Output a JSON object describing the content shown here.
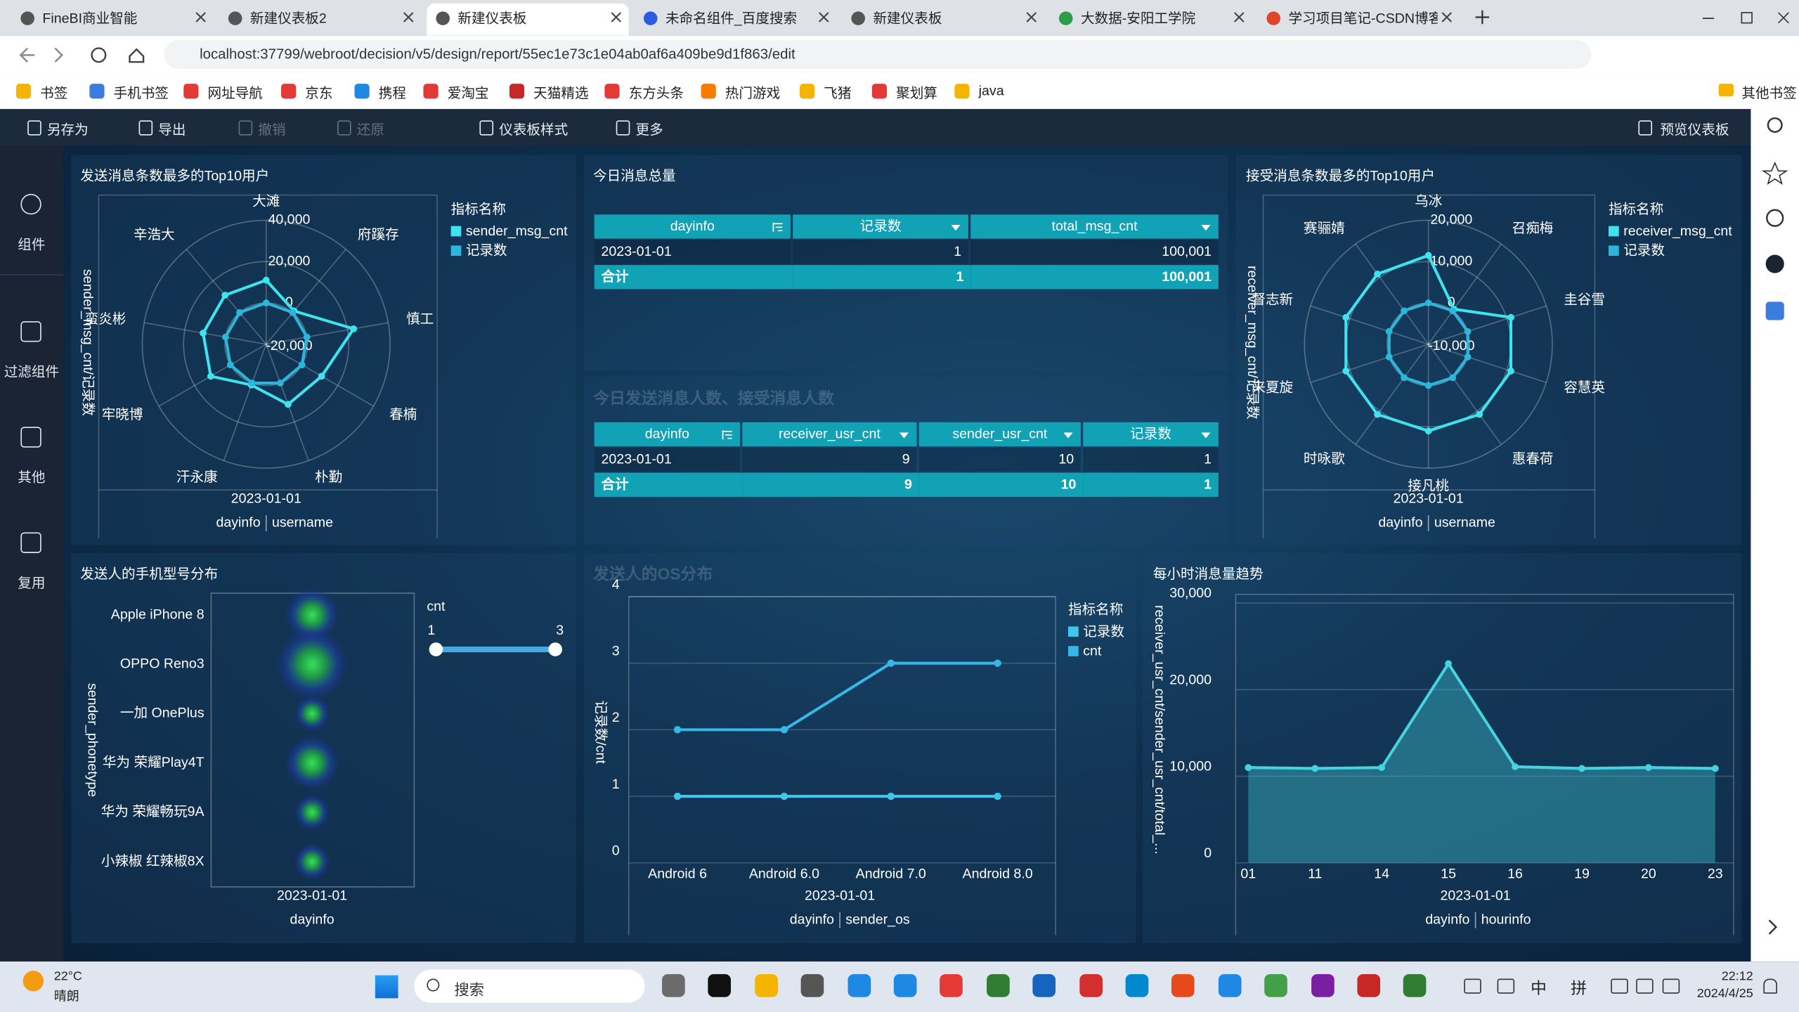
{
  "browser": {
    "tabs": [
      "FineBI商业智能",
      "新建仪表板2",
      "新建仪表板",
      "未命名组件_百度搜索",
      "新建仪表板",
      "大数据-安阳工学院",
      "学习项目笔记-CSDN博客"
    ],
    "url": "localhost:37799/webroot/decision/v5/design/report/55ec1e73c1e04ab0af6a409be9d1f863/edit",
    "bookmarks": [
      "书签",
      "手机书签",
      "网址导航",
      "京东",
      "携程",
      "爱淘宝",
      "天猫精选",
      "东方头条",
      "热门游戏",
      "飞猪",
      "聚划算",
      "java"
    ],
    "other_bookmarks": "其他书签"
  },
  "toolbar": {
    "actions": [
      "另存为",
      "导出",
      "撤销",
      "还原",
      "仪表板样式",
      "更多"
    ],
    "preview": "预览仪表板"
  },
  "sidebar": [
    "组件",
    "过滤组件",
    "其他",
    "复用"
  ],
  "tables": [
    {
      "title": "今日消息总量",
      "headers": [
        "dayinfo",
        "记录数",
        "total_msg_cnt"
      ],
      "rows": [
        [
          "2023-01-01",
          "1",
          "100,001"
        ]
      ],
      "total": [
        "合计",
        "1",
        "100,001"
      ]
    },
    {
      "title": "今日发送消息人数、接受消息人数",
      "headers": [
        "dayinfo",
        "receiver_usr_cnt",
        "sender_usr_cnt",
        "记录数"
      ],
      "rows": [
        [
          "2023-01-01",
          "9",
          "10",
          "1"
        ]
      ],
      "total": [
        "合计",
        "9",
        "10",
        "1"
      ]
    }
  ],
  "chart_data": [
    {
      "type": "radar",
      "title": "发送消息条数最多的Top10用户",
      "categories": [
        "大滩",
        "府蹊存",
        "慎工",
        "春楠",
        "朴勤",
        "汗永康",
        "牢晓博",
        "蛮炎彬",
        "辛浩大"
      ],
      "series": [
        {
          "name": "sender_msg_cnt",
          "color": "#3fe3ee",
          "values": [
            11000,
            1000,
            23000,
            11000,
            11000,
            1000,
            11000,
            11000,
            11000
          ]
        },
        {
          "name": "记录数",
          "color": "#2bb6dc",
          "values": [
            1,
            1,
            1,
            1,
            1,
            1,
            1,
            1,
            1
          ]
        }
      ],
      "rlim": [
        -20000,
        40000
      ],
      "rticks": [
        {
          "value": -20000,
          "label": "-20,000"
        },
        0,
        {
          "value": 20000,
          "label": "20,000"
        },
        {
          "value": 40000,
          "label": "40,000"
        }
      ],
      "y_label": "sender_msg_cnt/记录数",
      "x_category": "2023-01-01",
      "x_fields": [
        "dayinfo",
        "username"
      ],
      "legend_title": "指标名称"
    },
    {
      "type": "radar",
      "title": "接受消息条数最多的Top10用户",
      "categories": [
        "乌冰",
        "召痴梅",
        "圭谷雪",
        "容慧英",
        "惠春荷",
        "接凡桃",
        "时咏歌",
        "来夏旋",
        "督志新",
        "赛骊婧"
      ],
      "series": [
        {
          "name": "receiver_msg_cnt",
          "color": "#3fe3ee",
          "values": [
            11500,
            500,
            11000,
            11000,
            11000,
            11000,
            11000,
            11000,
            11000,
            11000
          ]
        },
        {
          "name": "记录数",
          "color": "#2bb6dc",
          "values": [
            1,
            1,
            1,
            1,
            1,
            1,
            1,
            1,
            1,
            1
          ]
        }
      ],
      "rlim": [
        -10000,
        20000
      ],
      "rticks": [
        {
          "value": -10000,
          "label": "-10,000"
        },
        0,
        {
          "value": 10000,
          "label": "10,000"
        },
        {
          "value": 20000,
          "label": "20,000"
        }
      ],
      "y_label": "receiver_msg_cnt/记录数",
      "x_category": "2023-01-01",
      "x_fields": [
        "dayinfo",
        "username"
      ],
      "legend_title": "指标名称"
    },
    {
      "type": "heatmap",
      "title": "发送人的手机型号分布",
      "categories": [
        "Apple iPhone 8",
        "OPPO Reno3",
        "一加 OnePlus",
        "华为 荣耀Play4T",
        "华为 荣耀畅玩9A",
        "小辣椒 红辣椒8X"
      ],
      "values": [
        2,
        3,
        1,
        2,
        1,
        1
      ],
      "legend_title": "cnt",
      "legend_range": [
        1,
        3
      ],
      "y_label": "sender_phonetype",
      "x_category": "2023-01-01",
      "x_fields": [
        "dayinfo"
      ]
    },
    {
      "type": "line",
      "title": "发送人的OS分布",
      "categories": [
        "Android 6",
        "Android 6.0",
        "Android 7.0",
        "Android 8.0"
      ],
      "series": [
        {
          "name": "记录数",
          "color": "#3ec6ef",
          "values": [
            1,
            1,
            1,
            1
          ]
        },
        {
          "name": "cnt",
          "color": "#35b8e8",
          "values": [
            2,
            2,
            3,
            3
          ]
        }
      ],
      "ylim": [
        0,
        4
      ],
      "yticks": [
        0,
        1,
        2,
        3,
        4
      ],
      "y_label": "记录数/cnt",
      "x_category": "2023-01-01",
      "x_fields": [
        "dayinfo",
        "sender_os"
      ],
      "legend_title": "指标名称"
    },
    {
      "type": "area",
      "title": "每小时消息量趋势",
      "categories": [
        "01",
        "11",
        "14",
        "15",
        "16",
        "19",
        "20",
        "23"
      ],
      "values": [
        11000,
        10900,
        11000,
        23000,
        11100,
        10900,
        11000,
        10900
      ],
      "color": "#46d3e0",
      "ylim": [
        0,
        31000
      ],
      "yticks": [
        0,
        {
          "value": 10000,
          "label": "10,000"
        },
        {
          "value": 20000,
          "label": "20,000"
        },
        {
          "value": 30000,
          "label": "30,000"
        }
      ],
      "y_label": "receiver_usr_cnt/sender_usr_cnt/total_...",
      "x_category": "2023-01-01",
      "x_fields": [
        "dayinfo",
        "hourinfo"
      ]
    }
  ],
  "taskbar": {
    "temperature": "22°C",
    "weather": "晴朗",
    "search": "搜索",
    "ime": [
      "中",
      "拼"
    ],
    "time": "22:12",
    "date": "2024/4/25"
  }
}
